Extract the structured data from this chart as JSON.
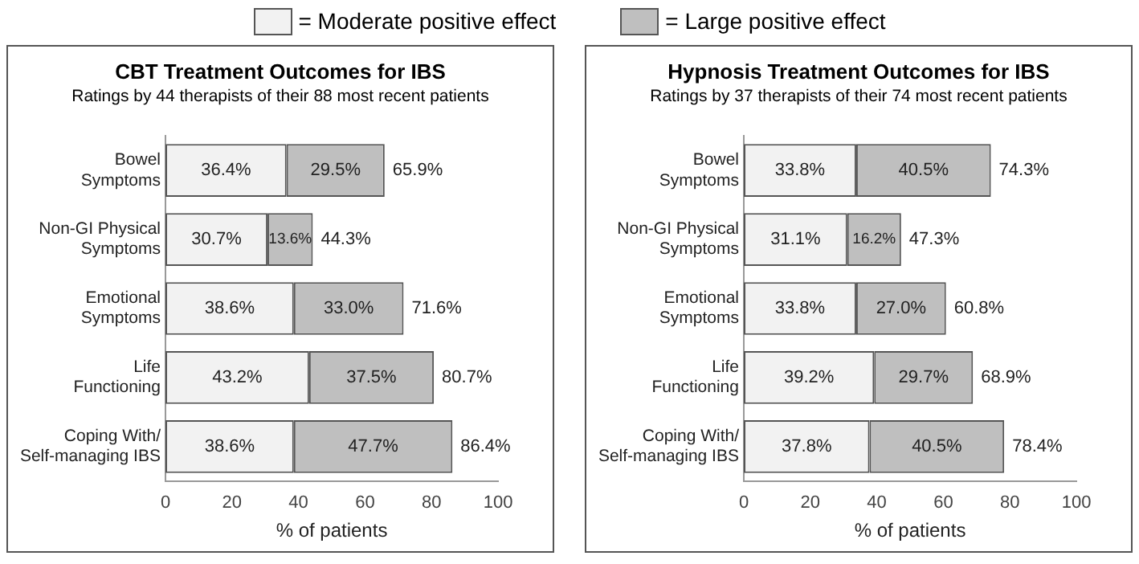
{
  "chart_data": [
    {
      "type": "bar",
      "orientation": "horizontal",
      "stacked": true,
      "title": "CBT Treatment Outcomes for IBS",
      "subtitle": "Ratings by 44 therapists of their 88 most recent patients",
      "xlabel": "% of patients",
      "categories": [
        "Bowel Symptoms",
        "Non-GI Physical Symptoms",
        "Emotional Symptoms",
        "Life Functioning",
        "Coping With/ Self-managing IBS"
      ],
      "series": [
        {
          "name": "= Moderate positive effect",
          "color": "#f2f2f2",
          "values": [
            36.4,
            30.7,
            38.6,
            43.2,
            38.6
          ],
          "value_labels": [
            "36.4%",
            "30.7%",
            "38.6%",
            "43.2%",
            "38.6%"
          ]
        },
        {
          "name": "= Large positive effect",
          "color": "#bfbfbf",
          "values": [
            29.5,
            13.6,
            33.0,
            37.5,
            47.7
          ],
          "value_labels": [
            "29.5%",
            "13.6%",
            "33.0%",
            "37.5%",
            "47.7%"
          ]
        }
      ],
      "totals": [
        "65.9%",
        "44.3%",
        "71.6%",
        "80.7%",
        "86.4%"
      ],
      "xlim": [
        0,
        100
      ],
      "xticks": [
        0,
        20,
        40,
        60,
        80,
        100
      ],
      "legend": "top"
    },
    {
      "type": "bar",
      "orientation": "horizontal",
      "stacked": true,
      "title": "Hypnosis Treatment Outcomes for IBS",
      "subtitle": "Ratings by 37 therapists of their 74 most recent patients",
      "xlabel": "% of patients",
      "categories": [
        "Bowel Symptoms",
        "Non-GI Physical Symptoms",
        "Emotional Symptoms",
        "Life Functioning",
        "Coping With/ Self-managing IBS"
      ],
      "series": [
        {
          "color": "#f2f2f2",
          "values": [
            33.8,
            31.1,
            33.8,
            39.2,
            37.8
          ],
          "value_labels": [
            "33.8%",
            "31.1%",
            "33.8%",
            "39.2%",
            "37.8%"
          ]
        },
        {
          "color": "#bfbfbf",
          "values": [
            40.5,
            16.2,
            27.0,
            29.7,
            40.5
          ],
          "value_labels": [
            "40.5%",
            "16.2%",
            "27.0%",
            "29.7%",
            "40.5%"
          ]
        }
      ],
      "totals": [
        "74.3%",
        "47.3%",
        "60.8%",
        "68.9%",
        "78.4%"
      ],
      "xlim": [
        0,
        100
      ],
      "xticks": [
        0,
        20,
        40,
        60,
        80,
        100
      ]
    }
  ]
}
